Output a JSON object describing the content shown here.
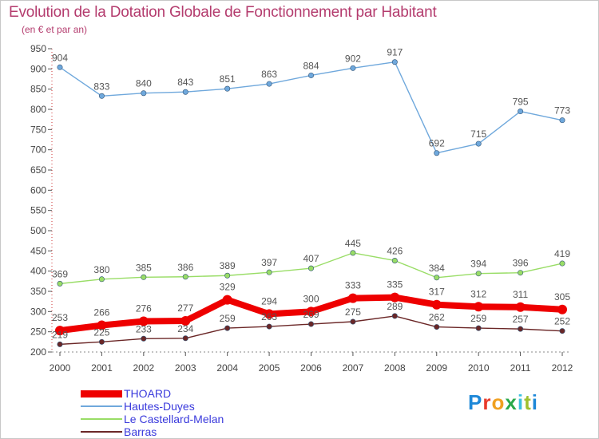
{
  "title": "Evolution de la Dotation Globale de Fonctionnement par Habitant",
  "subtitle": "(en € et par an)",
  "logo": {
    "text": "Proxiti"
  },
  "chart_data": {
    "type": "line",
    "x": [
      2000,
      2001,
      2002,
      2003,
      2004,
      2005,
      2006,
      2007,
      2008,
      2009,
      2010,
      2011,
      2012
    ],
    "ylim": [
      200,
      950
    ],
    "yticks": [
      200,
      250,
      300,
      350,
      400,
      450,
      500,
      550,
      600,
      650,
      700,
      750,
      800,
      850,
      900,
      950
    ],
    "grid": false,
    "legend_position": "bottom-left",
    "series": [
      {
        "name": "Barras",
        "color": "#6b2727",
        "values": [
          219,
          225,
          233,
          234,
          259,
          263,
          269,
          275,
          289,
          262,
          259,
          257,
          252
        ]
      },
      {
        "name": "Le Castellard-Melan",
        "color": "#99dd66",
        "values": [
          369,
          380,
          385,
          386,
          389,
          397,
          407,
          445,
          426,
          384,
          394,
          396,
          419
        ]
      },
      {
        "name": "Hautes-Duyes",
        "color": "#6fa8dc",
        "values": [
          904,
          833,
          840,
          843,
          851,
          863,
          884,
          902,
          917,
          692,
          715,
          795,
          773
        ]
      },
      {
        "name": "THOARD",
        "color": "#ee0000",
        "values": [
          253,
          266,
          276,
          277,
          329,
          294,
          300,
          333,
          335,
          317,
          312,
          311,
          305
        ]
      }
    ],
    "legend_order": [
      "THOARD",
      "Hautes-Duyes",
      "Le Castellard-Melan",
      "Barras"
    ]
  }
}
